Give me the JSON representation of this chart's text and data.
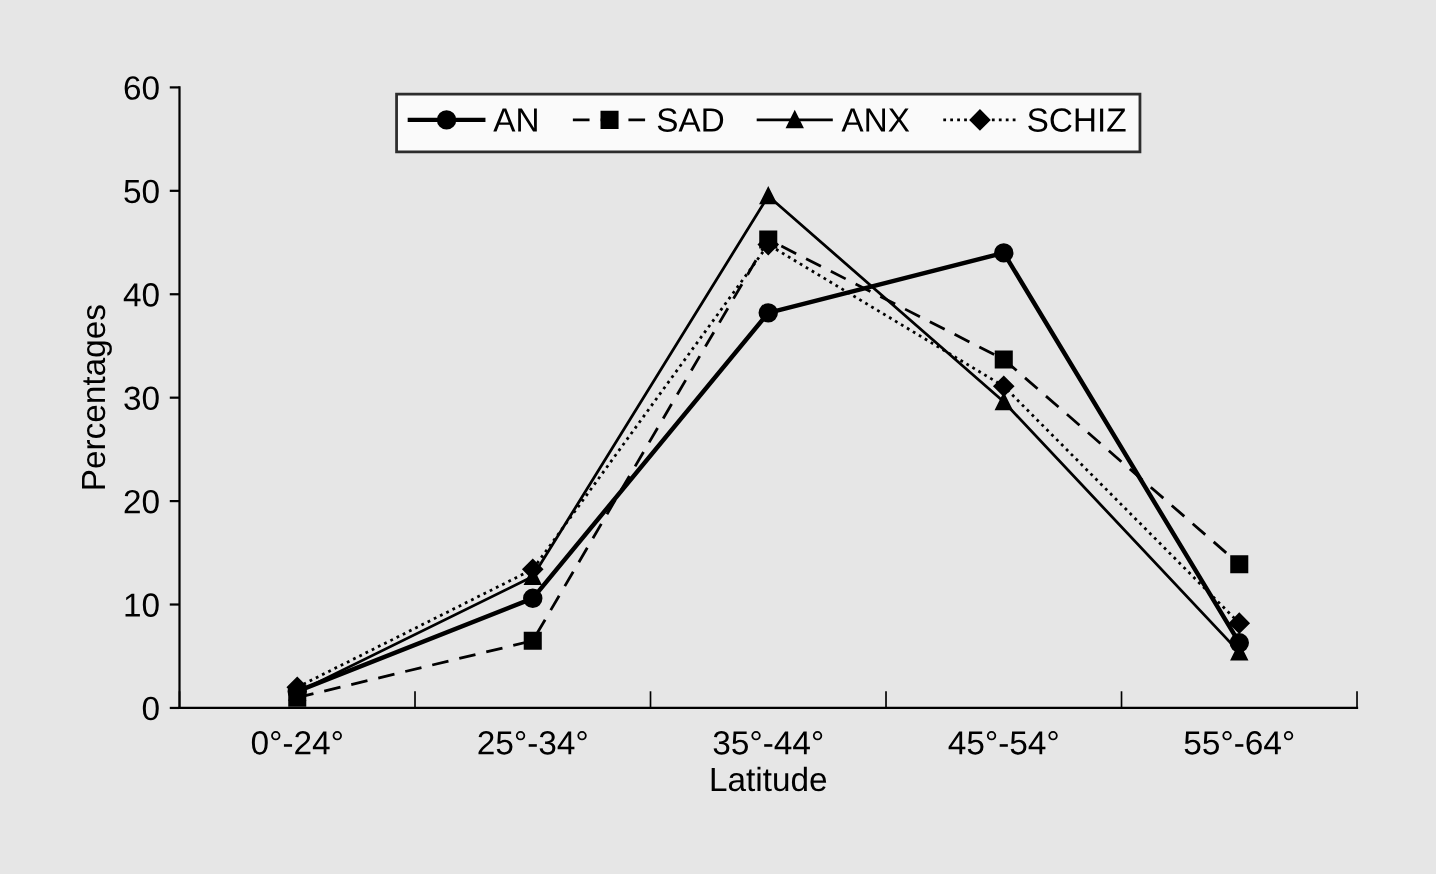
{
  "chart_data": {
    "type": "line",
    "xlabel": "Latitude",
    "ylabel": "Percentages",
    "categories": [
      "0°-24°",
      "25°-34°",
      "35°-44°",
      "45°-54°",
      "55°-64°"
    ],
    "series": [
      {
        "name": "AN",
        "color": "#000000",
        "marker": "circle",
        "line_style": "solid",
        "values": [
          1.6,
          10.6,
          38.2,
          44,
          6.3
        ]
      },
      {
        "name": "SAD",
        "color": "#000000",
        "marker": "square",
        "line_style": "dashed",
        "values": [
          1.0,
          6.5,
          45.3,
          33.7,
          13.9
        ]
      },
      {
        "name": "ANX",
        "color": "#000000",
        "marker": "triangle",
        "line_style": "solid",
        "values": [
          1.5,
          12.7,
          49.5,
          29.6,
          5.4
        ]
      },
      {
        "name": "SCHIZ",
        "color": "#000000",
        "marker": "diamond",
        "line_style": "dotted",
        "values": [
          2.0,
          13.4,
          44.8,
          31.1,
          8.2
        ]
      }
    ],
    "ylim": [
      0,
      60
    ],
    "yticks": [
      0,
      10,
      20,
      30,
      40,
      50,
      60
    ],
    "grid": false,
    "legend": "top"
  }
}
